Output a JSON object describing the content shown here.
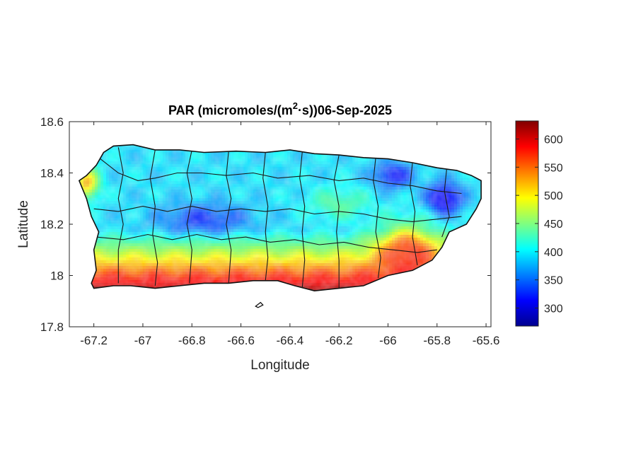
{
  "figure": {
    "title_prefix": "PAR (micromoles/(m",
    "title_sup": "2",
    "title_suffix": "·s))06-Sep-2025"
  },
  "axes": {
    "xlabel": "Longitude",
    "ylabel": "Latitude",
    "xlim": [
      -67.3,
      -65.58
    ],
    "ylim": [
      17.8,
      18.6
    ],
    "xticks": [
      {
        "value": -67.2,
        "label": "-67.2"
      },
      {
        "value": -67.0,
        "label": "-67"
      },
      {
        "value": -66.8,
        "label": "-66.8"
      },
      {
        "value": -66.6,
        "label": "-66.6"
      },
      {
        "value": -66.4,
        "label": "-66.4"
      },
      {
        "value": -66.2,
        "label": "-66.2"
      },
      {
        "value": -66.0,
        "label": "-66"
      },
      {
        "value": -65.8,
        "label": "-65.8"
      },
      {
        "value": -65.6,
        "label": "-65.6"
      }
    ],
    "yticks": [
      {
        "value": 17.8,
        "label": "17.8"
      },
      {
        "value": 18.0,
        "label": "18"
      },
      {
        "value": 18.2,
        "label": "18.2"
      },
      {
        "value": 18.4,
        "label": "18.4"
      },
      {
        "value": 18.6,
        "label": "18.6"
      }
    ],
    "grid": false
  },
  "colorbar": {
    "colormap": "jet",
    "range": [
      268,
      632
    ],
    "ticks": [
      {
        "value": 300,
        "label": "300"
      },
      {
        "value": 350,
        "label": "350"
      },
      {
        "value": 400,
        "label": "400"
      },
      {
        "value": 450,
        "label": "450"
      },
      {
        "value": 500,
        "label": "500"
      },
      {
        "value": 550,
        "label": "550"
      },
      {
        "value": 600,
        "label": "600"
      }
    ]
  },
  "map": {
    "region": "Puerto Rico",
    "island_outline": [
      [
        -67.26,
        18.37
      ],
      [
        -67.23,
        18.39
      ],
      [
        -67.19,
        18.43
      ],
      [
        -67.16,
        18.48
      ],
      [
        -67.12,
        18.505
      ],
      [
        -67.04,
        18.51
      ],
      [
        -66.95,
        18.49
      ],
      [
        -66.85,
        18.49
      ],
      [
        -66.75,
        18.48
      ],
      [
        -66.62,
        18.485
      ],
      [
        -66.5,
        18.48
      ],
      [
        -66.4,
        18.49
      ],
      [
        -66.3,
        18.475
      ],
      [
        -66.2,
        18.47
      ],
      [
        -66.1,
        18.46
      ],
      [
        -66.0,
        18.455
      ],
      [
        -65.9,
        18.44
      ],
      [
        -65.8,
        18.42
      ],
      [
        -65.72,
        18.41
      ],
      [
        -65.66,
        18.39
      ],
      [
        -65.62,
        18.37
      ],
      [
        -65.62,
        18.3
      ],
      [
        -65.64,
        18.26
      ],
      [
        -65.68,
        18.2
      ],
      [
        -65.75,
        18.17
      ],
      [
        -65.78,
        18.11
      ],
      [
        -65.82,
        18.06
      ],
      [
        -65.9,
        18.02
      ],
      [
        -66.0,
        18.0
      ],
      [
        -66.1,
        17.96
      ],
      [
        -66.2,
        17.95
      ],
      [
        -66.3,
        17.94
      ],
      [
        -66.38,
        17.96
      ],
      [
        -66.45,
        17.98
      ],
      [
        -66.55,
        17.98
      ],
      [
        -66.65,
        17.97
      ],
      [
        -66.75,
        17.97
      ],
      [
        -66.85,
        17.96
      ],
      [
        -66.95,
        17.95
      ],
      [
        -67.05,
        17.96
      ],
      [
        -67.12,
        17.96
      ],
      [
        -67.2,
        17.95
      ],
      [
        -67.21,
        17.97
      ],
      [
        -67.19,
        18.02
      ],
      [
        -67.2,
        18.1
      ],
      [
        -67.18,
        18.17
      ],
      [
        -67.21,
        18.23
      ],
      [
        -67.23,
        18.3
      ]
    ],
    "municipal_lines": [
      [
        [
          -67.18,
          18.46
        ],
        [
          -67.1,
          18.4
        ],
        [
          -67.02,
          18.37
        ],
        [
          -66.95,
          18.38
        ],
        [
          -66.86,
          18.4
        ],
        [
          -66.76,
          18.4
        ],
        [
          -66.66,
          18.39
        ],
        [
          -66.55,
          18.4
        ],
        [
          -66.45,
          18.38
        ],
        [
          -66.32,
          18.39
        ],
        [
          -66.2,
          18.37
        ],
        [
          -66.1,
          18.38
        ],
        [
          -66.0,
          18.36
        ],
        [
          -65.9,
          18.35
        ],
        [
          -65.8,
          18.33
        ],
        [
          -65.7,
          18.32
        ]
      ],
      [
        [
          -67.2,
          18.26
        ],
        [
          -67.1,
          18.25
        ],
        [
          -67.0,
          18.27
        ],
        [
          -66.9,
          18.25
        ],
        [
          -66.8,
          18.27
        ],
        [
          -66.7,
          18.25
        ],
        [
          -66.6,
          18.26
        ],
        [
          -66.5,
          18.25
        ],
        [
          -66.4,
          18.26
        ],
        [
          -66.3,
          18.24
        ],
        [
          -66.2,
          18.25
        ],
        [
          -66.1,
          18.24
        ],
        [
          -66.0,
          18.22
        ],
        [
          -65.9,
          18.21
        ],
        [
          -65.8,
          18.22
        ],
        [
          -65.7,
          18.23
        ]
      ],
      [
        [
          -67.19,
          18.15
        ],
        [
          -67.08,
          18.14
        ],
        [
          -66.98,
          18.16
        ],
        [
          -66.88,
          18.14
        ],
        [
          -66.78,
          18.16
        ],
        [
          -66.68,
          18.14
        ],
        [
          -66.58,
          18.15
        ],
        [
          -66.48,
          18.13
        ],
        [
          -66.38,
          18.14
        ],
        [
          -66.28,
          18.12
        ],
        [
          -66.18,
          18.13
        ],
        [
          -66.08,
          18.11
        ],
        [
          -65.98,
          18.1
        ],
        [
          -65.88,
          18.09
        ],
        [
          -65.8,
          18.1
        ]
      ],
      [
        [
          -67.1,
          18.5
        ],
        [
          -67.08,
          18.4
        ],
        [
          -67.1,
          18.3
        ],
        [
          -67.08,
          18.2
        ],
        [
          -67.1,
          18.1
        ],
        [
          -67.1,
          17.97
        ]
      ],
      [
        [
          -66.95,
          18.49
        ],
        [
          -66.97,
          18.38
        ],
        [
          -66.95,
          18.27
        ],
        [
          -66.96,
          18.16
        ],
        [
          -66.94,
          18.05
        ],
        [
          -66.95,
          17.96
        ]
      ],
      [
        [
          -66.8,
          18.49
        ],
        [
          -66.82,
          18.4
        ],
        [
          -66.8,
          18.3
        ],
        [
          -66.82,
          18.2
        ],
        [
          -66.8,
          18.1
        ],
        [
          -66.81,
          17.97
        ]
      ],
      [
        [
          -66.65,
          18.485
        ],
        [
          -66.66,
          18.39
        ],
        [
          -66.64,
          18.3
        ],
        [
          -66.66,
          18.2
        ],
        [
          -66.64,
          18.1
        ],
        [
          -66.65,
          17.97
        ]
      ],
      [
        [
          -66.5,
          18.48
        ],
        [
          -66.51,
          18.38
        ],
        [
          -66.49,
          18.27
        ],
        [
          -66.5,
          18.17
        ],
        [
          -66.49,
          18.07
        ],
        [
          -66.5,
          17.98
        ]
      ],
      [
        [
          -66.35,
          18.48
        ],
        [
          -66.36,
          18.38
        ],
        [
          -66.34,
          18.27
        ],
        [
          -66.35,
          18.17
        ],
        [
          -66.34,
          18.06
        ],
        [
          -66.35,
          17.95
        ]
      ],
      [
        [
          -66.2,
          18.47
        ],
        [
          -66.22,
          18.37
        ],
        [
          -66.2,
          18.27
        ],
        [
          -66.21,
          18.17
        ],
        [
          -66.2,
          18.06
        ],
        [
          -66.2,
          17.95
        ]
      ],
      [
        [
          -66.05,
          18.46
        ],
        [
          -66.06,
          18.37
        ],
        [
          -66.04,
          18.27
        ],
        [
          -66.05,
          18.17
        ],
        [
          -66.03,
          18.07
        ],
        [
          -66.04,
          17.99
        ]
      ],
      [
        [
          -65.9,
          18.44
        ],
        [
          -65.91,
          18.35
        ],
        [
          -65.89,
          18.25
        ],
        [
          -65.9,
          18.15
        ],
        [
          -65.88,
          18.04
        ]
      ],
      [
        [
          -65.76,
          18.42
        ],
        [
          -65.77,
          18.33
        ],
        [
          -65.75,
          18.23
        ],
        [
          -65.78,
          18.15
        ]
      ]
    ],
    "islets": [
      [
        [
          -66.54,
          17.88
        ],
        [
          -66.52,
          17.895
        ],
        [
          -66.51,
          17.885
        ],
        [
          -66.53,
          17.875
        ]
      ]
    ]
  }
}
